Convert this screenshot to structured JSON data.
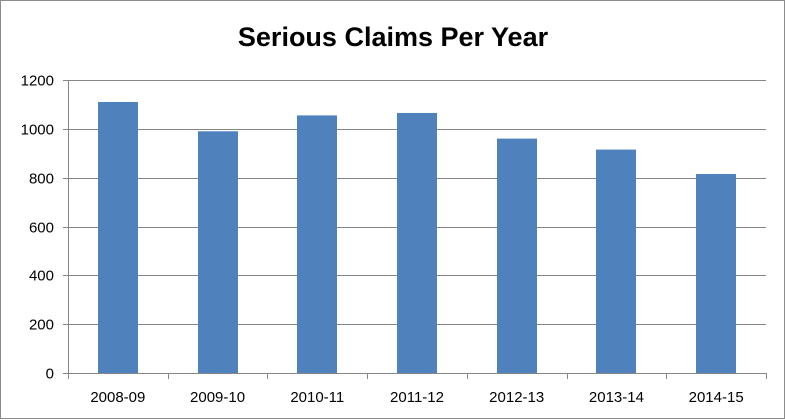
{
  "chart_data": {
    "type": "bar",
    "title": "Serious Claims Per Year",
    "categories": [
      "2008-09",
      "2009-10",
      "2010-11",
      "2011-12",
      "2012-13",
      "2013-14",
      "2014-15"
    ],
    "values": [
      1110,
      990,
      1055,
      1065,
      960,
      915,
      815
    ],
    "ylim": [
      0,
      1200
    ],
    "yticks": [
      0,
      200,
      400,
      600,
      800,
      1000,
      1200
    ],
    "xlabel": "",
    "ylabel": "",
    "grid": true,
    "legend": "none",
    "colors": {
      "bar": "#4f81bd",
      "grid": "#868686",
      "axis": "#868686"
    }
  }
}
